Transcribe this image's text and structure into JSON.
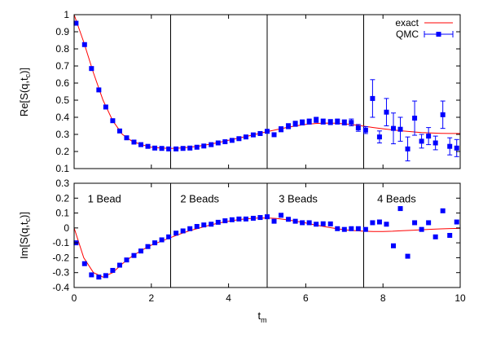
{
  "figure": {
    "xlabel_base": "t",
    "xlabel_sub": "m"
  },
  "chart_data": [
    {
      "type": "scatter",
      "ylabel_main": "Re[S(q,t",
      "ylabel_sub": "c",
      "ylabel_tail": ")]",
      "xlim": [
        0,
        10
      ],
      "ylim": [
        0.1,
        1
      ],
      "xticks": [
        0,
        2,
        4,
        6,
        8,
        10
      ],
      "yticks": [
        0.1,
        0.2,
        0.3,
        0.4,
        0.5,
        0.6,
        0.7,
        0.8,
        0.9,
        1
      ],
      "dividers": [
        2.5,
        5,
        7.5
      ],
      "legend": {
        "position": "top-right",
        "entries": [
          "exact",
          "QMC"
        ]
      },
      "exact_color": "#ff0000",
      "qmc_color": "#0000ff",
      "series": [
        {
          "name": "exact",
          "kind": "line",
          "x": [
            0,
            0.25,
            0.5,
            0.75,
            1.0,
            1.25,
            1.5,
            1.75,
            2.0,
            2.25,
            2.5,
            2.75,
            3.0,
            3.25,
            3.5,
            3.75,
            4.0,
            4.25,
            4.5,
            4.75,
            5.0,
            5.25,
            5.5,
            5.75,
            6.0,
            6.25,
            6.5,
            6.75,
            7.0,
            7.25,
            7.5,
            7.75,
            8.0,
            8.25,
            8.5,
            8.75,
            9.0,
            9.25,
            9.5,
            9.75,
            10.0
          ],
          "y": [
            1.0,
            0.84,
            0.66,
            0.5,
            0.38,
            0.3,
            0.26,
            0.24,
            0.225,
            0.22,
            0.218,
            0.22,
            0.225,
            0.232,
            0.242,
            0.253,
            0.265,
            0.278,
            0.29,
            0.303,
            0.316,
            0.328,
            0.34,
            0.35,
            0.358,
            0.364,
            0.366,
            0.365,
            0.362,
            0.356,
            0.348,
            0.34,
            0.333,
            0.326,
            0.32,
            0.315,
            0.311,
            0.308,
            0.306,
            0.305,
            0.305
          ]
        },
        {
          "name": "QMC",
          "kind": "points",
          "x": [
            0.05,
            0.27,
            0.45,
            0.64,
            0.82,
            1.0,
            1.18,
            1.36,
            1.55,
            1.73,
            1.91,
            2.09,
            2.27,
            2.45,
            2.64,
            2.82,
            3.0,
            3.18,
            3.36,
            3.55,
            3.73,
            3.91,
            4.09,
            4.27,
            4.45,
            4.64,
            4.82,
            5.0,
            5.18,
            5.36,
            5.55,
            5.73,
            5.91,
            6.09,
            6.27,
            6.45,
            6.64,
            6.82,
            7.0,
            7.18,
            7.36,
            7.55,
            7.73,
            7.91,
            8.09,
            8.27,
            8.45,
            8.64,
            8.82,
            9.0,
            9.18,
            9.36,
            9.55,
            9.73,
            9.91
          ],
          "y": [
            0.95,
            0.825,
            0.685,
            0.56,
            0.46,
            0.38,
            0.32,
            0.28,
            0.255,
            0.24,
            0.23,
            0.22,
            0.218,
            0.215,
            0.215,
            0.218,
            0.22,
            0.225,
            0.232,
            0.24,
            0.25,
            0.257,
            0.265,
            0.275,
            0.285,
            0.297,
            0.305,
            0.318,
            0.298,
            0.33,
            0.348,
            0.362,
            0.37,
            0.375,
            0.385,
            0.375,
            0.372,
            0.375,
            0.37,
            0.37,
            0.338,
            0.325,
            0.51,
            0.285,
            0.43,
            0.335,
            0.33,
            0.215,
            0.395,
            0.26,
            0.29,
            0.25,
            0.415,
            0.23,
            0.22
          ],
          "err": [
            0.005,
            0.005,
            0.005,
            0.005,
            0.005,
            0.005,
            0.005,
            0.005,
            0.005,
            0.005,
            0.005,
            0.005,
            0.005,
            0.005,
            0.005,
            0.005,
            0.005,
            0.005,
            0.005,
            0.005,
            0.005,
            0.005,
            0.005,
            0.005,
            0.005,
            0.008,
            0.008,
            0.01,
            0.01,
            0.015,
            0.015,
            0.015,
            0.015,
            0.015,
            0.015,
            0.015,
            0.015,
            0.015,
            0.015,
            0.02,
            0.02,
            0.02,
            0.11,
            0.035,
            0.08,
            0.09,
            0.07,
            0.07,
            0.1,
            0.04,
            0.05,
            0.04,
            0.08,
            0.05,
            0.05
          ]
        }
      ]
    },
    {
      "type": "scatter",
      "ylabel_main": "Im[S(q,t",
      "ylabel_sub": "c",
      "ylabel_tail": ")]",
      "xlim": [
        0,
        10
      ],
      "ylim": [
        -0.4,
        0.3
      ],
      "xticks": [
        0,
        2,
        4,
        6,
        8,
        10
      ],
      "xtick_labels": [
        "0",
        "2",
        "4",
        "6",
        "8",
        "10"
      ],
      "yticks": [
        -0.4,
        -0.3,
        -0.2,
        -0.1,
        0,
        0.1,
        0.2,
        0.3
      ],
      "dividers": [
        2.5,
        5,
        7.5
      ],
      "annotations": [
        {
          "text": "1 Bead",
          "x": 0.35,
          "y": 0.2
        },
        {
          "text": "2 Beads",
          "x": 2.75,
          "y": 0.2
        },
        {
          "text": "3 Beads",
          "x": 5.3,
          "y": 0.2
        },
        {
          "text": "4 Beads",
          "x": 7.85,
          "y": 0.2
        }
      ],
      "series": [
        {
          "name": "exact",
          "kind": "line",
          "x": [
            0,
            0.25,
            0.5,
            0.75,
            1.0,
            1.25,
            1.5,
            1.75,
            2.0,
            2.25,
            2.5,
            2.75,
            3.0,
            3.25,
            3.5,
            3.75,
            4.0,
            4.25,
            4.5,
            4.75,
            5.0,
            5.25,
            5.5,
            5.75,
            6.0,
            6.25,
            6.5,
            6.75,
            7.0,
            7.25,
            7.5,
            7.75,
            8.0,
            8.25,
            8.5,
            8.75,
            9.0,
            9.25,
            9.5,
            9.75,
            10.0
          ],
          "y": [
            0.0,
            -0.2,
            -0.3,
            -0.33,
            -0.3,
            -0.24,
            -0.19,
            -0.15,
            -0.115,
            -0.09,
            -0.065,
            -0.04,
            -0.018,
            0.0,
            0.018,
            0.033,
            0.045,
            0.055,
            0.062,
            0.066,
            0.067,
            0.063,
            0.055,
            0.045,
            0.033,
            0.02,
            0.008,
            -0.003,
            -0.012,
            -0.018,
            -0.022,
            -0.024,
            -0.024,
            -0.022,
            -0.019,
            -0.016,
            -0.012,
            -0.009,
            -0.006,
            -0.004,
            -0.003
          ]
        },
        {
          "name": "QMC",
          "kind": "points",
          "x": [
            0.05,
            0.27,
            0.45,
            0.64,
            0.82,
            1.0,
            1.18,
            1.36,
            1.55,
            1.73,
            1.91,
            2.09,
            2.27,
            2.45,
            2.64,
            2.82,
            3.0,
            3.18,
            3.36,
            3.55,
            3.73,
            3.91,
            4.09,
            4.27,
            4.45,
            4.64,
            4.82,
            5.0,
            5.18,
            5.36,
            5.55,
            5.73,
            5.91,
            6.09,
            6.27,
            6.45,
            6.64,
            6.82,
            7.0,
            7.18,
            7.36,
            7.55,
            7.73,
            7.91,
            8.09,
            8.27,
            8.45,
            8.64,
            8.82,
            9.0,
            9.18,
            9.36,
            9.55,
            9.73,
            9.91
          ],
          "y": [
            -0.1,
            -0.24,
            -0.315,
            -0.33,
            -0.32,
            -0.285,
            -0.25,
            -0.215,
            -0.185,
            -0.155,
            -0.125,
            -0.1,
            -0.08,
            -0.06,
            -0.035,
            -0.02,
            -0.005,
            0.01,
            0.02,
            0.025,
            0.038,
            0.048,
            0.055,
            0.06,
            0.06,
            0.065,
            0.07,
            0.075,
            0.045,
            0.085,
            0.058,
            0.045,
            0.035,
            0.035,
            0.025,
            0.028,
            0.027,
            -0.005,
            -0.01,
            -0.005,
            -0.005,
            -0.01,
            0.035,
            0.04,
            0.025,
            -0.12,
            0.13,
            -0.19,
            0.035,
            -0.01,
            0.035,
            -0.06,
            0.115,
            -0.05,
            0.04
          ]
        }
      ]
    }
  ]
}
